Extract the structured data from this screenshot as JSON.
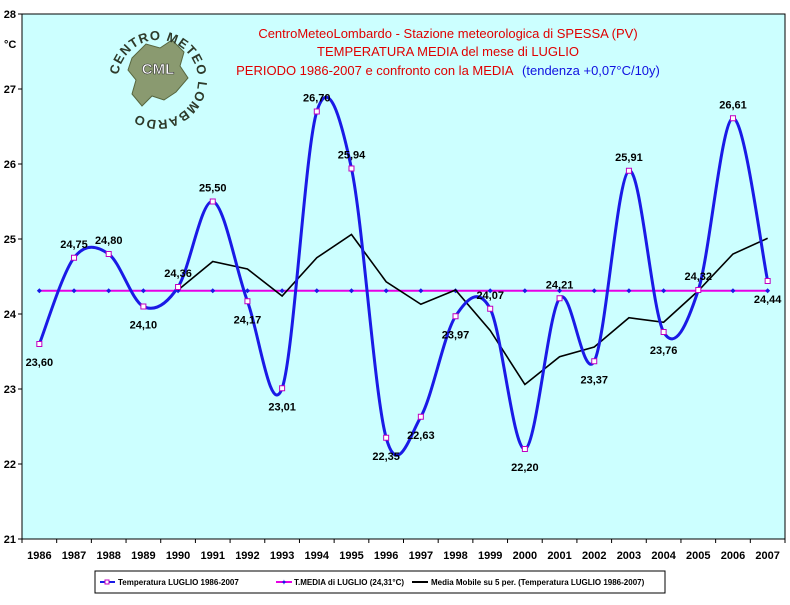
{
  "chart_data": {
    "type": "line",
    "title_lines": [
      "CentroMeteoLombardo - Stazione meteorologica di SPESSA (PV)",
      "TEMPERATURA MEDIA del mese di LUGLIO",
      "PERIODO 1986-2007 e confronto con la MEDIA"
    ],
    "title_trend": "(tendenza +0,07°C/10y)",
    "ylabel": "°C",
    "ylim": [
      21,
      28
    ],
    "yticks": [
      "21",
      "22",
      "23",
      "24",
      "25",
      "26",
      "27",
      "28"
    ],
    "x": [
      "1986",
      "1987",
      "1988",
      "1989",
      "1990",
      "1991",
      "1992",
      "1993",
      "1994",
      "1995",
      "1996",
      "1997",
      "1998",
      "1999",
      "2000",
      "2001",
      "2002",
      "2003",
      "2004",
      "2005",
      "2006",
      "2007"
    ],
    "series": [
      {
        "name": "Temperatura LUGLIO 1986-2007",
        "color": "#1a1ae6",
        "values": [
          23.6,
          24.75,
          24.8,
          24.1,
          24.36,
          25.5,
          24.17,
          23.01,
          26.7,
          25.94,
          22.35,
          22.63,
          23.97,
          24.07,
          22.2,
          24.21,
          23.37,
          25.91,
          23.76,
          24.32,
          26.61,
          24.44
        ],
        "labels": [
          "23,60",
          "24,75",
          "24,80",
          "24,10",
          "24,36",
          "25,50",
          "24,17",
          "23,01",
          "26,70",
          "25,94",
          "22,35",
          "22,63",
          "23,97",
          "24,07",
          "22,20",
          "24,21",
          "23,37",
          "25,91",
          "23,76",
          "24,32",
          "26,61",
          "24,44"
        ]
      },
      {
        "name": "T.MEDIA di LUGLIO (24,31°C)",
        "color": "#e600e6",
        "values": [
          24.31,
          24.31,
          24.31,
          24.31,
          24.31,
          24.31,
          24.31,
          24.31,
          24.31,
          24.31,
          24.31,
          24.31,
          24.31,
          24.31,
          24.31,
          24.31,
          24.31,
          24.31,
          24.31,
          24.31,
          24.31,
          24.31
        ]
      },
      {
        "name": "Media Mobile su 5 per. (Temperatura LUGLIO 1986-2007)",
        "color": "#000000",
        "values": [
          null,
          null,
          null,
          null,
          24.32,
          24.7,
          24.6,
          24.24,
          24.75,
          25.06,
          24.43,
          24.13,
          24.32,
          23.78,
          23.06,
          23.43,
          23.56,
          23.95,
          23.89,
          24.31,
          24.8,
          25.01
        ]
      }
    ],
    "logo_text": "CENTRO METEO LOMBARDO",
    "logo_abbr": "CML",
    "plot_bg": "#ccffff",
    "grid": false,
    "legend_position": "bottom"
  }
}
